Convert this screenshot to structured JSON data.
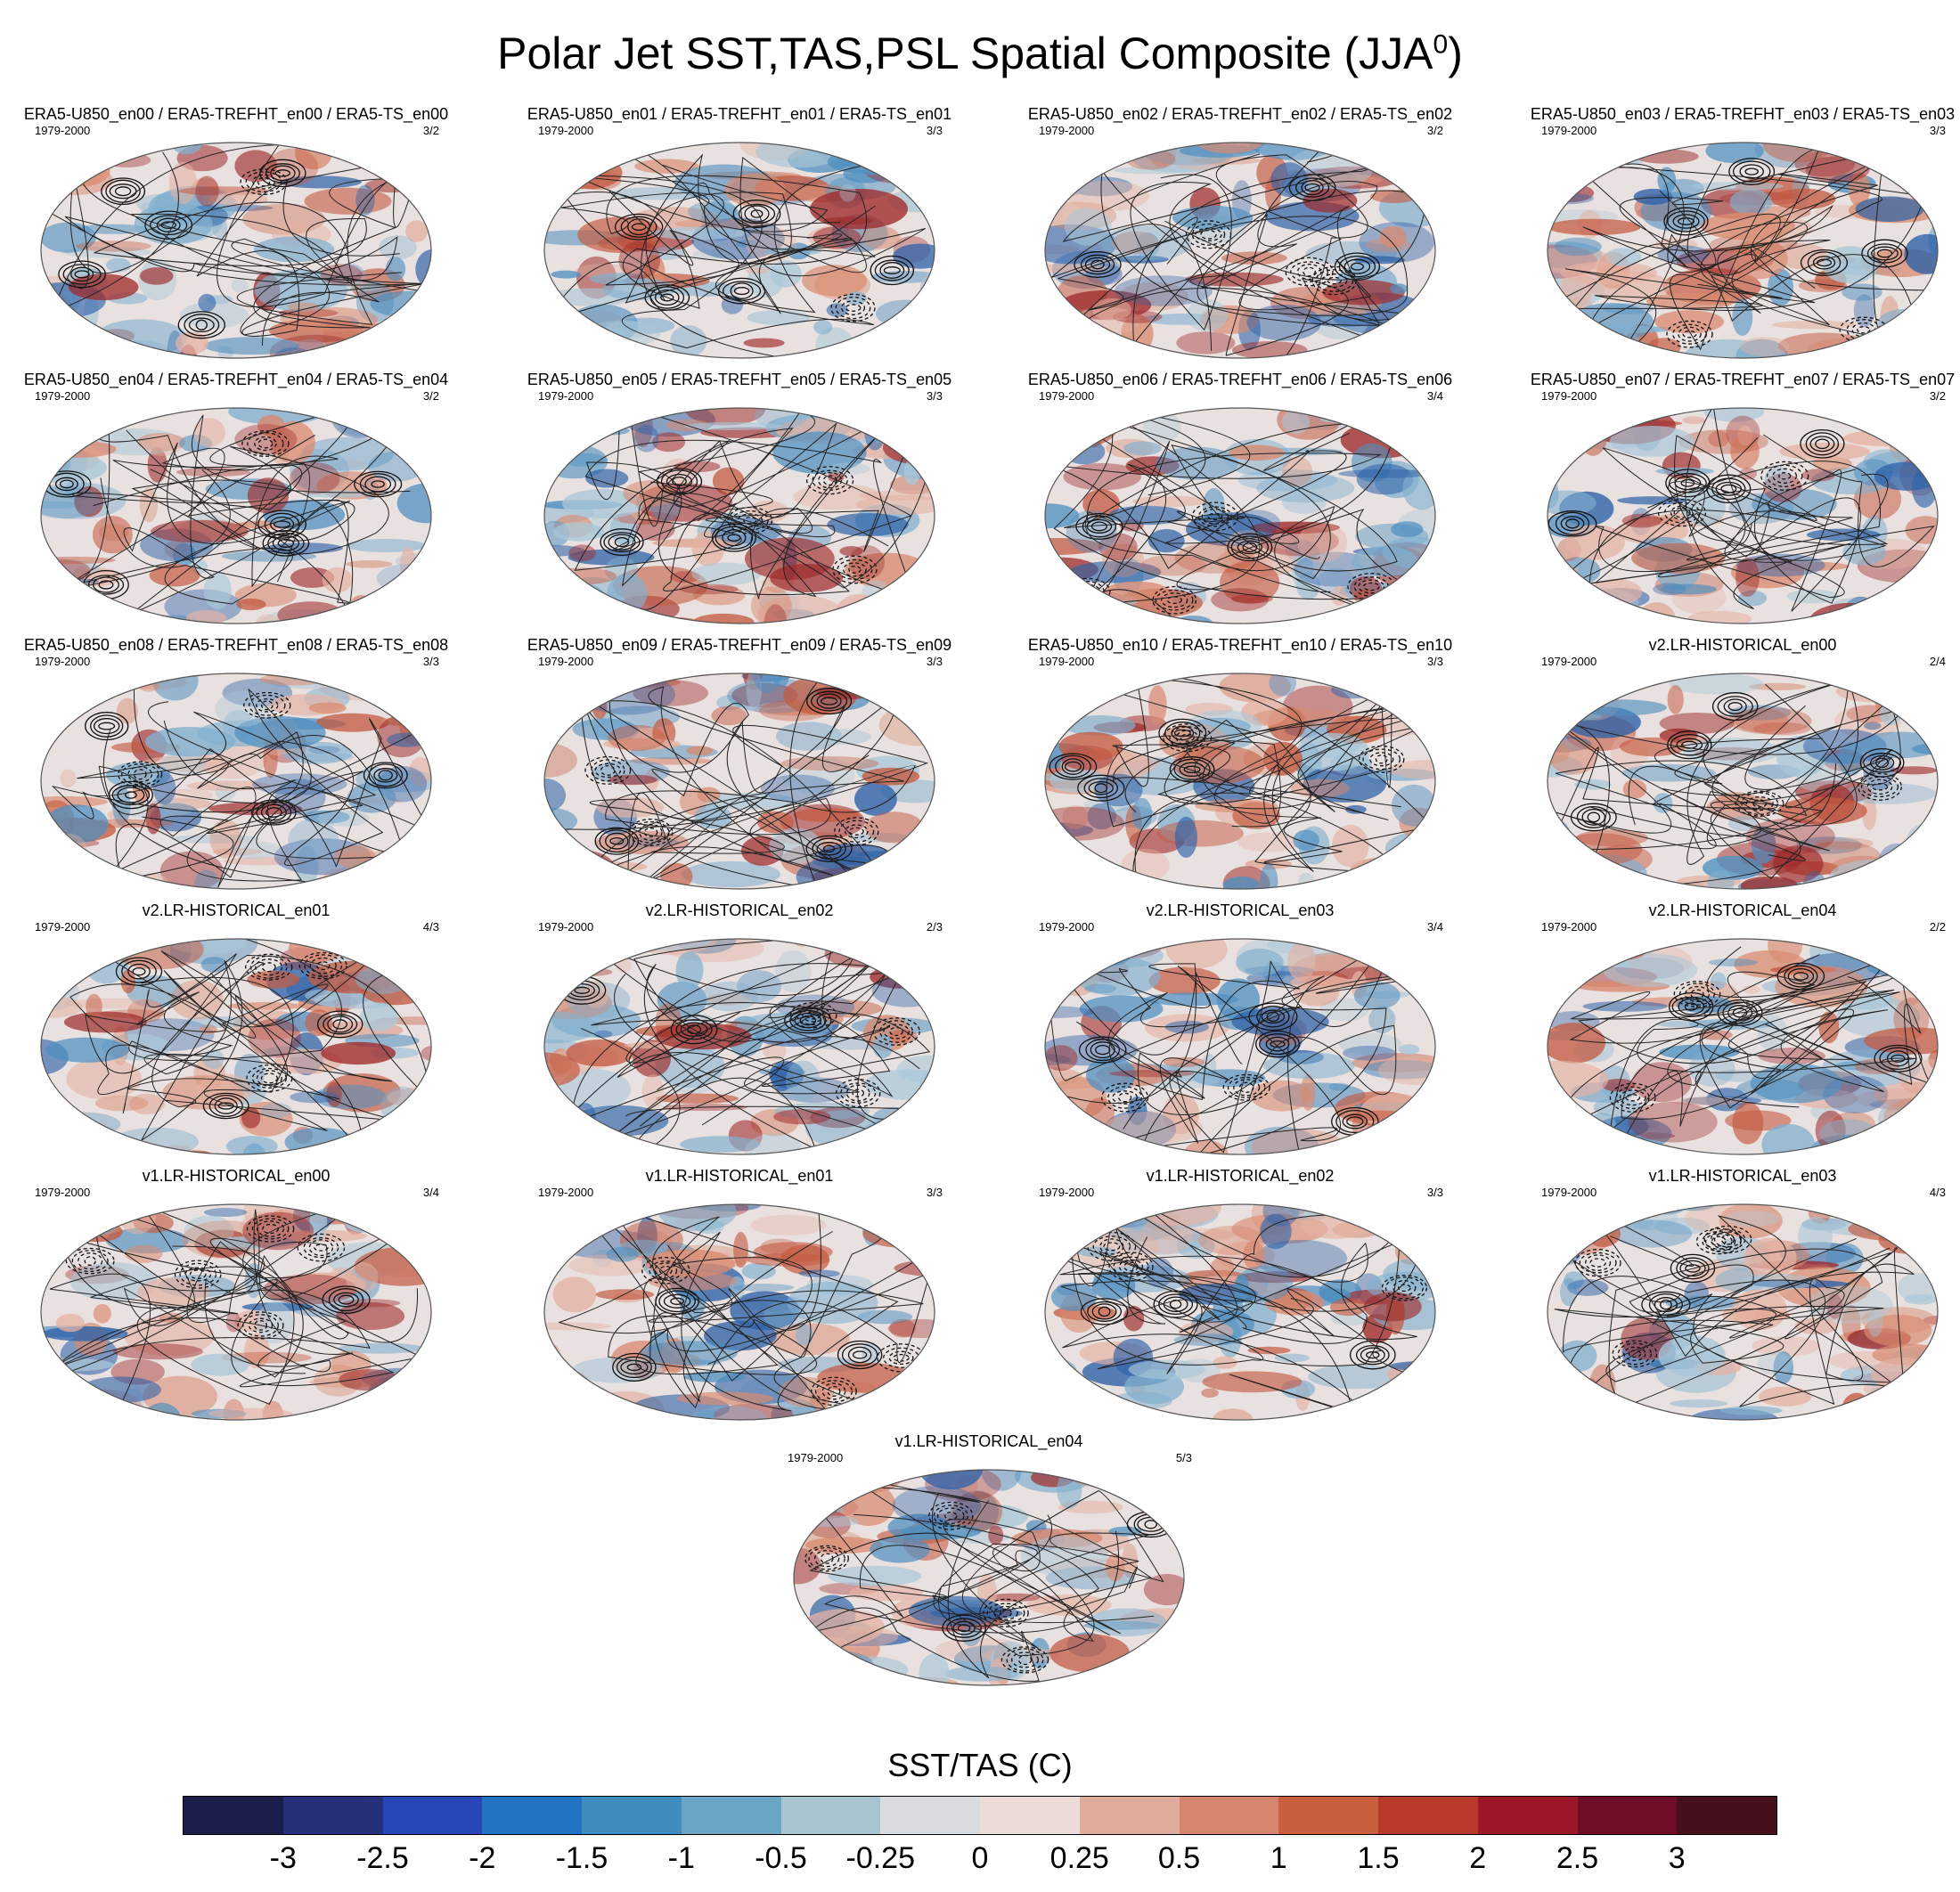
{
  "title": "Polar Jet SST,TAS,PSL Spatial Composite (JJA",
  "title_superscript": "0",
  "title_close": ")",
  "panels": [
    {
      "title": "ERA5-U850_en00 / ERA5-TREFHT_en00 / ERA5-TS_en00",
      "period": "1979-2000",
      "ratio": "3/2"
    },
    {
      "title": "ERA5-U850_en01 / ERA5-TREFHT_en01 / ERA5-TS_en01",
      "period": "1979-2000",
      "ratio": "3/3"
    },
    {
      "title": "ERA5-U850_en02 / ERA5-TREFHT_en02 / ERA5-TS_en02",
      "period": "1979-2000",
      "ratio": "3/2"
    },
    {
      "title": "ERA5-U850_en03 / ERA5-TREFHT_en03 / ERA5-TS_en03",
      "period": "1979-2000",
      "ratio": "3/3"
    },
    {
      "title": "ERA5-U850_en04 / ERA5-TREFHT_en04 / ERA5-TS_en04",
      "period": "1979-2000",
      "ratio": "3/2"
    },
    {
      "title": "ERA5-U850_en05 / ERA5-TREFHT_en05 / ERA5-TS_en05",
      "period": "1979-2000",
      "ratio": "3/3"
    },
    {
      "title": "ERA5-U850_en06 / ERA5-TREFHT_en06 / ERA5-TS_en06",
      "period": "1979-2000",
      "ratio": "3/4"
    },
    {
      "title": "ERA5-U850_en07 / ERA5-TREFHT_en07 / ERA5-TS_en07",
      "period": "1979-2000",
      "ratio": "3/2"
    },
    {
      "title": "ERA5-U850_en08 / ERA5-TREFHT_en08 / ERA5-TS_en08",
      "period": "1979-2000",
      "ratio": "3/3"
    },
    {
      "title": "ERA5-U850_en09 / ERA5-TREFHT_en09 / ERA5-TS_en09",
      "period": "1979-2000",
      "ratio": "3/3"
    },
    {
      "title": "ERA5-U850_en10 / ERA5-TREFHT_en10 / ERA5-TS_en10",
      "period": "1979-2000",
      "ratio": "3/3"
    },
    {
      "title": "v2.LR-HISTORICAL_en00",
      "period": "1979-2000",
      "ratio": "2/4"
    },
    {
      "title": "v2.LR-HISTORICAL_en01",
      "period": "1979-2000",
      "ratio": "4/3"
    },
    {
      "title": "v2.LR-HISTORICAL_en02",
      "period": "1979-2000",
      "ratio": "2/3"
    },
    {
      "title": "v2.LR-HISTORICAL_en03",
      "period": "1979-2000",
      "ratio": "3/4"
    },
    {
      "title": "v2.LR-HISTORICAL_en04",
      "period": "1979-2000",
      "ratio": "2/2"
    },
    {
      "title": "v1.LR-HISTORICAL_en00",
      "period": "1979-2000",
      "ratio": "3/4"
    },
    {
      "title": "v1.LR-HISTORICAL_en01",
      "period": "1979-2000",
      "ratio": "3/3"
    },
    {
      "title": "v1.LR-HISTORICAL_en02",
      "period": "1979-2000",
      "ratio": "3/3"
    },
    {
      "title": "v1.LR-HISTORICAL_en03",
      "period": "1979-2000",
      "ratio": "4/3"
    },
    {
      "title": "v1.LR-HISTORICAL_en04",
      "period": "1979-2000",
      "ratio": "5/3"
    }
  ],
  "colorbar": {
    "title": "SST/TAS (C)",
    "colors": [
      "#1b1d4a",
      "#252f7a",
      "#2747b8",
      "#2273c3",
      "#3f8cbf",
      "#6aa6c4",
      "#a6c3cf",
      "#d9dcde",
      "#ecdcd8",
      "#e0ad9d",
      "#d5866c",
      "#c95f3e",
      "#b83a2a",
      "#9c1828",
      "#6d0e26",
      "#45101c"
    ],
    "ticks": [
      "-3",
      "-2.5",
      "-2",
      "-1.5",
      "-1",
      "-0.5",
      "-0.25",
      "0",
      "0.25",
      "0.5",
      "1",
      "1.5",
      "2",
      "2.5",
      "3"
    ]
  }
}
